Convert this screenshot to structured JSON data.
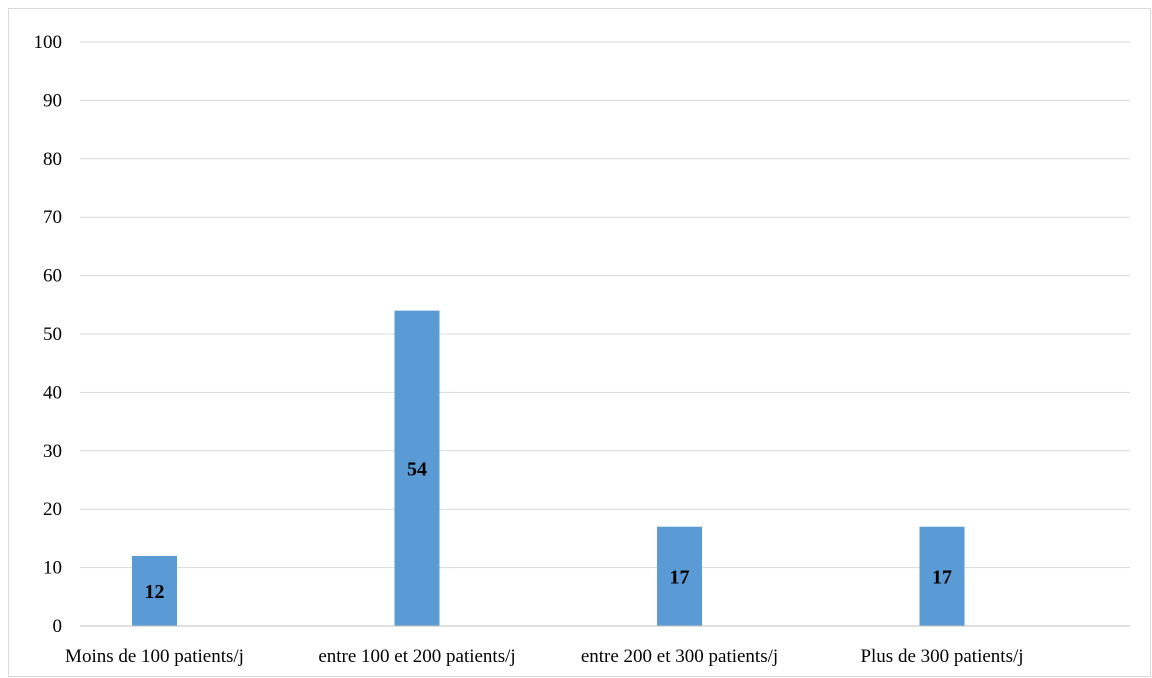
{
  "chart_data": {
    "type": "bar",
    "categories": [
      "Moins de 100 patients/j",
      "entre 100 et 200 patients/j",
      "entre 200 et 300 patients/j",
      "Plus de 300 patients/j"
    ],
    "values": [
      12,
      54,
      17,
      17
    ],
    "data_labels": [
      "12",
      "54",
      "17",
      "17"
    ],
    "title": "",
    "xlabel": "",
    "ylabel": "",
    "ylim": [
      0,
      100
    ],
    "yticks": [
      0,
      10,
      20,
      30,
      40,
      50,
      60,
      70,
      80,
      90,
      100
    ],
    "grid": true,
    "legend": "none",
    "colors": {
      "bar": "#5b9bd5",
      "grid": "#d9d9d9",
      "axis": "#bfbfbf"
    }
  }
}
